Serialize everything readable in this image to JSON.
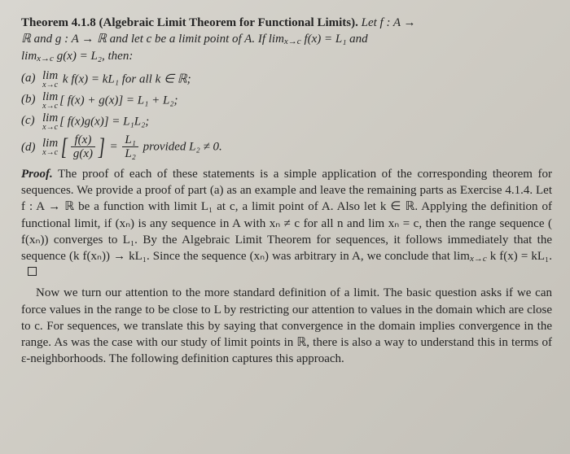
{
  "theorem": {
    "number": "Theorem 4.1.8",
    "title": "(Algebraic Limit Theorem for Functional Limits).",
    "statement_pre": "Let f : A →",
    "statement_line2": "ℝ and g : A → ℝ and let c be a limit point of A. If lim",
    "statement_lim1_sub": "x→c",
    "statement_lim1_post": " f(x) = L₁ and",
    "statement_line3_pre": "lim",
    "statement_lim2_sub": "x→c",
    "statement_lim2_post": " g(x) = L₂, then:"
  },
  "items": {
    "a": {
      "label": "(a)",
      "body_pre": "lim",
      "sub": "x→c",
      "body": " k f(x) = kL₁ for all k ∈ ℝ;"
    },
    "b": {
      "label": "(b)",
      "body_pre": "lim",
      "sub": "x→c",
      "body": "[ f(x) + g(x)] = L₁ + L₂;"
    },
    "c": {
      "label": "(c)",
      "body_pre": "lim",
      "sub": "x→c",
      "body": "[ f(x)g(x)] = L₁L₂;"
    },
    "d": {
      "label": "(d)",
      "body_pre": "lim",
      "sub": "x→c",
      "frac_num": "f(x)",
      "frac_den": "g(x)",
      "eq": " = ",
      "rfrac_num": "L₁",
      "rfrac_den": "L₂",
      "tail": " provided L₂ ≠ 0."
    }
  },
  "proof": {
    "label": "Proof.",
    "body": "The proof of each of these statements is a simple application of the corresponding theorem for sequences. We provide a proof of part (a) as an example and leave the remaining parts as Exercise 4.1.4. Let f : A → ℝ be a function with limit L₁ at c, a limit point of A. Also let k ∈ ℝ. Applying the definition of functional limit, if (xₙ) is any sequence in A with xₙ ≠ c for all n and lim xₙ = c, then the range sequence ( f(xₙ)) converges to L₁. By the Algebraic Limit Theorem for sequences, it follows immediately that the sequence (k f(xₙ)) → kL₁. Since the sequence (xₙ) was arbitrary in A, we conclude that lim",
    "tail_sub": "x→c",
    "tail_post": " k f(x) = kL₁."
  },
  "followup": "Now we turn our attention to the more standard definition of a limit. The basic question asks if we can force values in the range to be close to L by restricting our attention to values in the domain which are close to c. For sequences, we translate this by saying that convergence in the domain implies convergence in the range. As was the case with our study of limit points in ℝ, there is also a way to understand this in terms of ε-neighborhoods. The following definition captures this approach."
}
